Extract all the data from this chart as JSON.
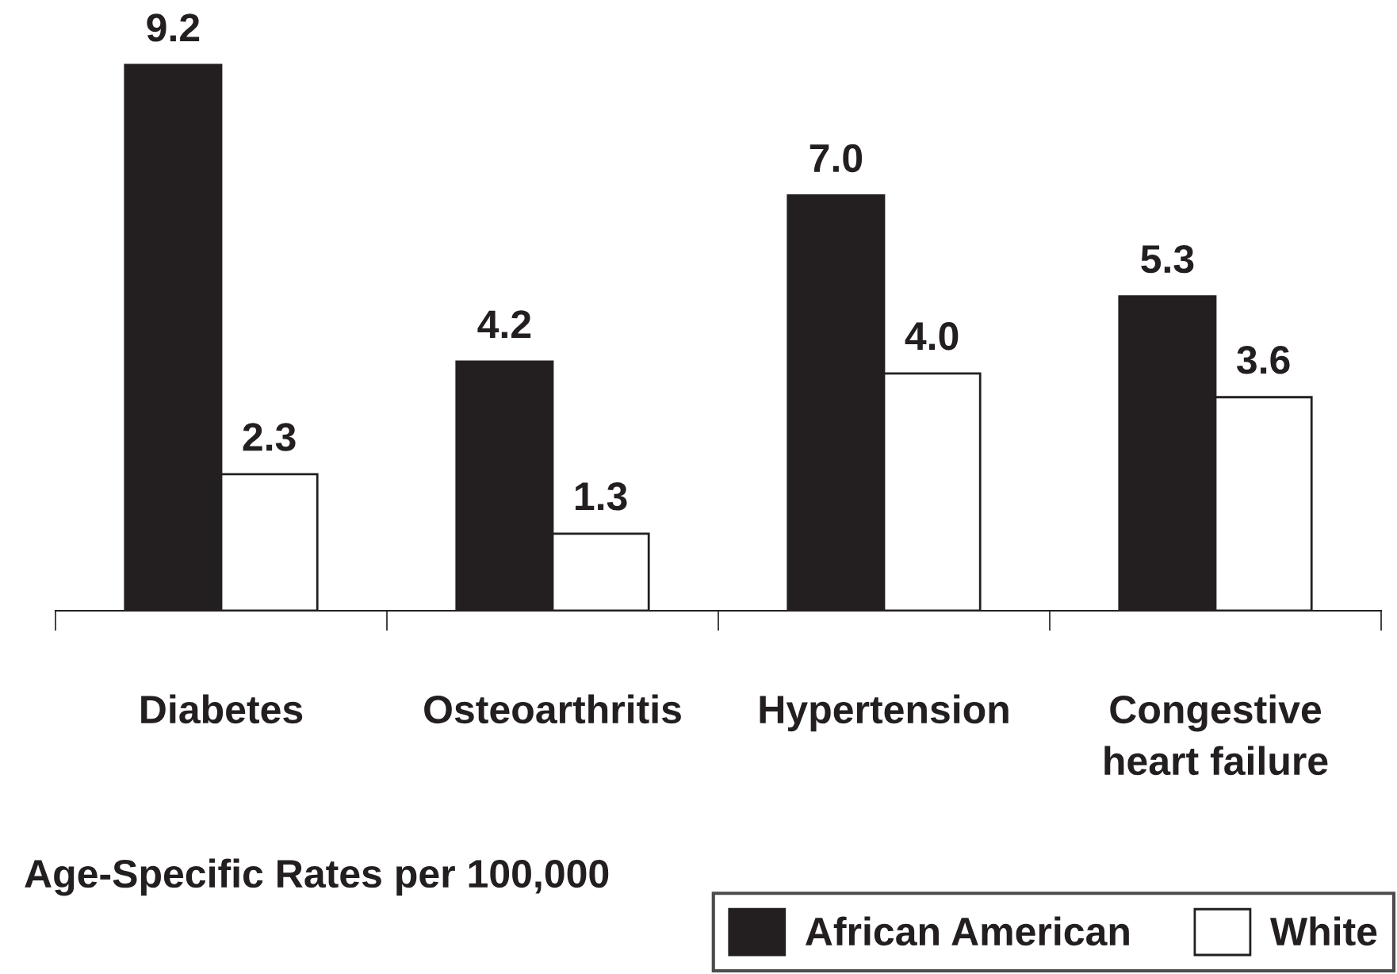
{
  "chart_data": {
    "type": "bar",
    "categories": [
      "Diabetes",
      "Osteoarthritis",
      "Hypertension",
      "Congestive\nheart failure"
    ],
    "series": [
      {
        "name": "African American",
        "color": "#231f20",
        "values": [
          9.2,
          4.2,
          7.0,
          5.3
        ],
        "value_labels": [
          "9.2",
          "4.2",
          "7.0",
          "5.3"
        ]
      },
      {
        "name": "White",
        "color": "#ffffff",
        "values": [
          2.3,
          1.3,
          4.0,
          3.6
        ],
        "value_labels": [
          "2.3",
          "1.3",
          "4.0",
          "3.6"
        ]
      }
    ],
    "annotations": [
      "Age-Specific Rates per 100,000"
    ],
    "legend": "bottom right"
  }
}
